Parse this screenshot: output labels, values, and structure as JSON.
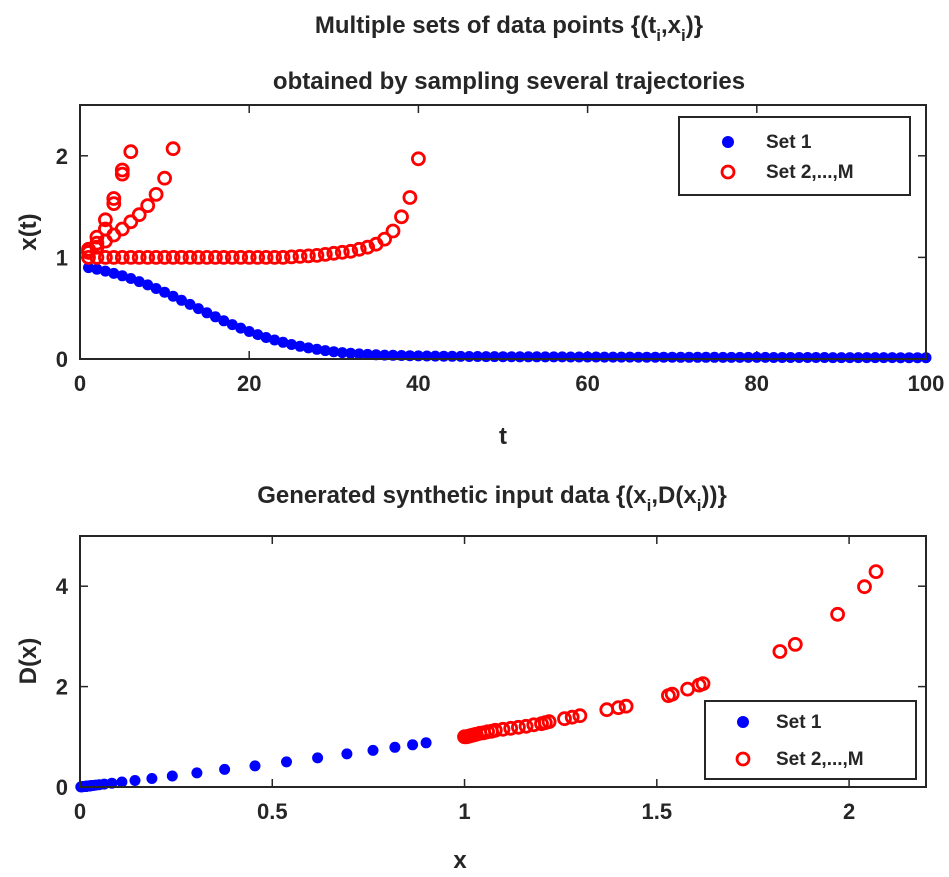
{
  "chart_data": [
    {
      "type": "scatter",
      "title_line1_main": "Multiple sets of data points {(t",
      "title_line1_sub1": "i",
      "title_line1_mid": ",x",
      "title_line1_sub2": "i",
      "title_line1_end": ")}",
      "title_line2": "obtained by sampling several trajectories",
      "xlabel": "t",
      "ylabel": "x(t)",
      "xlim": [
        0,
        100
      ],
      "ylim": [
        0,
        2.5
      ],
      "xticks": [
        0,
        20,
        40,
        60,
        80,
        100
      ],
      "xtick_labels": [
        "0",
        "20",
        "40",
        "60",
        "80",
        "100"
      ],
      "yticks": [
        0,
        1,
        2
      ],
      "ytick_labels": [
        "0",
        "1",
        "2"
      ],
      "legend": [
        "Set 1",
        "Set 2,...,M"
      ],
      "legend_position": "top-right",
      "series": [
        {
          "name": "Set 1",
          "marker": "filled-circle",
          "color": "#0000ff",
          "x": [
            1,
            2,
            3,
            4,
            5,
            6,
            7,
            8,
            9,
            10,
            11,
            12,
            13,
            14,
            15,
            16,
            17,
            18,
            19,
            20,
            21,
            22,
            23,
            24,
            25,
            26,
            27,
            28,
            29,
            30,
            31,
            32,
            33,
            34,
            35,
            36,
            37,
            38,
            39,
            40,
            41,
            42,
            43,
            44,
            45,
            46,
            47,
            48,
            49,
            50,
            51,
            52,
            53,
            54,
            55,
            56,
            57,
            58,
            59,
            60,
            61,
            62,
            63,
            64,
            65,
            66,
            67,
            68,
            69,
            70,
            71,
            72,
            73,
            74,
            75,
            76,
            77,
            78,
            79,
            80,
            81,
            82,
            83,
            84,
            85,
            86,
            87,
            88,
            89,
            90,
            91,
            92,
            93,
            94,
            95,
            96,
            97,
            98,
            99,
            100
          ],
          "y": [
            0.9,
            0.884,
            0.865,
            0.843,
            0.819,
            0.792,
            0.762,
            0.729,
            0.694,
            0.657,
            0.618,
            0.578,
            0.537,
            0.496,
            0.455,
            0.415,
            0.376,
            0.339,
            0.304,
            0.271,
            0.24,
            0.212,
            0.187,
            0.164,
            0.143,
            0.125,
            0.109,
            0.095,
            0.083,
            0.072,
            0.063,
            0.056,
            0.05,
            0.045,
            0.041,
            0.038,
            0.036,
            0.034,
            0.032,
            0.031,
            0.03,
            0.029,
            0.028,
            0.027,
            0.026,
            0.025,
            0.025,
            0.024,
            0.024,
            0.023,
            0.023,
            0.022,
            0.022,
            0.022,
            0.021,
            0.021,
            0.021,
            0.02,
            0.02,
            0.02,
            0.02,
            0.019,
            0.019,
            0.019,
            0.019,
            0.018,
            0.018,
            0.018,
            0.018,
            0.018,
            0.017,
            0.017,
            0.017,
            0.017,
            0.017,
            0.016,
            0.016,
            0.016,
            0.016,
            0.016,
            0.016,
            0.015,
            0.015,
            0.015,
            0.015,
            0.015,
            0.015,
            0.015,
            0.014,
            0.014,
            0.014,
            0.014,
            0.014,
            0.014,
            0.014,
            0.014,
            0.013,
            0.013,
            0.013,
            0.013
          ]
        },
        {
          "name": "Set 2,...,M",
          "marker": "open-circle",
          "color": "#ff0000",
          "x": [
            1,
            2,
            3,
            4,
            5,
            6,
            7,
            8,
            9,
            10,
            11,
            12,
            13,
            14,
            15,
            16,
            17,
            18,
            19,
            20,
            21,
            22,
            23,
            24,
            25,
            26,
            27,
            28,
            29,
            30,
            31,
            32,
            33,
            34,
            35,
            36,
            37,
            38,
            39,
            40,
            1,
            2,
            3,
            4,
            5,
            6,
            7,
            8,
            9,
            10,
            11,
            1,
            2,
            3,
            4,
            5,
            6,
            1,
            2,
            3,
            4,
            5
          ],
          "y": [
            1.0,
            1.0,
            1.0,
            1.0,
            1.0,
            1.0,
            1.0,
            1.0,
            1.0,
            1.0,
            1.0,
            1.0,
            1.0,
            1.0,
            1.0,
            1.0,
            1.0,
            1.0,
            1.0,
            1.0,
            1.0,
            1.0,
            1.0,
            1.0,
            1.005,
            1.01,
            1.015,
            1.02,
            1.03,
            1.04,
            1.05,
            1.06,
            1.08,
            1.1,
            1.13,
            1.18,
            1.26,
            1.4,
            1.59,
            1.97,
            1.05,
            1.1,
            1.16,
            1.22,
            1.28,
            1.35,
            1.42,
            1.51,
            1.62,
            1.78,
            2.07,
            1.08,
            1.2,
            1.37,
            1.58,
            1.86,
            2.04,
            1.05,
            1.14,
            1.28,
            1.53,
            1.82
          ]
        }
      ]
    },
    {
      "type": "scatter",
      "title_main": "Generated synthetic input data {(x",
      "title_sub1": "i",
      "title_mid": ",D(x",
      "title_sub2": "i",
      "title_end": "))}",
      "xlabel": "x",
      "ylabel": "D(x)",
      "xlim": [
        0,
        2.2
      ],
      "ylim": [
        0,
        5
      ],
      "xticks": [
        0,
        0.5,
        1,
        1.5,
        2
      ],
      "xtick_labels": [
        "0",
        "0.5",
        "1",
        "1.5",
        "2"
      ],
      "yticks": [
        0,
        2,
        4
      ],
      "ytick_labels": [
        "0",
        "2",
        "4"
      ],
      "legend": [
        "Set 1",
        "Set 2,...,M"
      ],
      "legend_position": "bottom-right",
      "series": [
        {
          "name": "Set 1",
          "marker": "filled-circle",
          "color": "#0000ff",
          "x": [
            0.9,
            0.865,
            0.819,
            0.762,
            0.694,
            0.618,
            0.537,
            0.455,
            0.376,
            0.304,
            0.24,
            0.187,
            0.143,
            0.109,
            0.083,
            0.063,
            0.05,
            0.041,
            0.036,
            0.032,
            0.03,
            0.028,
            0.026,
            0.025,
            0.024,
            0.023,
            0.022,
            0.021,
            0.02,
            0.019,
            0.018,
            0.017,
            0.016,
            0.015,
            0.014,
            0.013,
            0.01,
            0.008,
            0.006,
            0.004,
            0.002
          ],
          "y": [
            0.88,
            0.84,
            0.79,
            0.73,
            0.66,
            0.58,
            0.5,
            0.42,
            0.35,
            0.28,
            0.22,
            0.17,
            0.13,
            0.1,
            0.075,
            0.057,
            0.045,
            0.037,
            0.032,
            0.029,
            0.027,
            0.025,
            0.023,
            0.022,
            0.021,
            0.02,
            0.02,
            0.019,
            0.018,
            0.017,
            0.016,
            0.015,
            0.014,
            0.013,
            0.012,
            0.011,
            0.009,
            0.007,
            0.005,
            0.003,
            0.002
          ]
        },
        {
          "name": "Set 2,...,M",
          "marker": "open-circle",
          "color": "#ff0000",
          "x": [
            1.0,
            1.005,
            1.01,
            1.015,
            1.02,
            1.025,
            1.03,
            1.04,
            1.05,
            1.06,
            1.07,
            1.08,
            1.1,
            1.12,
            1.14,
            1.16,
            1.18,
            1.2,
            1.21,
            1.22,
            1.26,
            1.28,
            1.3,
            1.37,
            1.4,
            1.42,
            1.53,
            1.54,
            1.58,
            1.61,
            1.62,
            1.82,
            1.86,
            1.97,
            2.04,
            2.07
          ],
          "y": [
            1.0,
            1.0,
            1.01,
            1.02,
            1.03,
            1.04,
            1.05,
            1.07,
            1.08,
            1.1,
            1.11,
            1.13,
            1.15,
            1.17,
            1.19,
            1.21,
            1.24,
            1.26,
            1.28,
            1.3,
            1.36,
            1.39,
            1.42,
            1.54,
            1.58,
            1.61,
            1.82,
            1.85,
            1.95,
            2.03,
            2.06,
            2.7,
            2.84,
            3.44,
            3.99,
            4.29
          ]
        }
      ]
    }
  ]
}
